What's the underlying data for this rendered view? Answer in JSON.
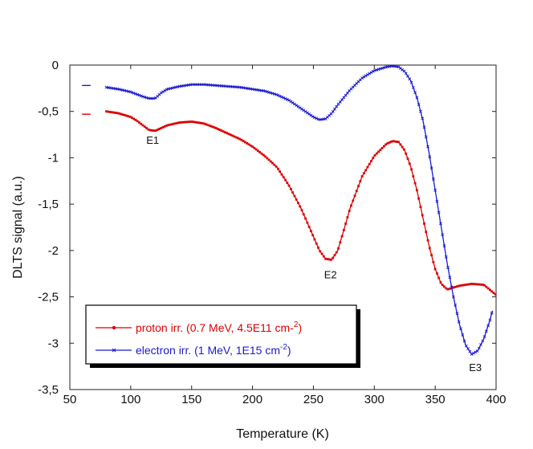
{
  "chart_data": {
    "type": "line",
    "title": "",
    "xlabel": "Temperature (K)",
    "ylabel": "DLTS signal (a.u.)",
    "xlim": [
      50,
      400
    ],
    "ylim": [
      -3.5,
      0
    ],
    "xticks": [
      50,
      100,
      150,
      200,
      250,
      300,
      350,
      400
    ],
    "xtick_labels": [
      "50",
      "100",
      "150",
      "200",
      "250",
      "300",
      "350",
      "400"
    ],
    "yticks": [
      0,
      -0.5,
      -1,
      -1.5,
      -2,
      -2.5,
      -3,
      -3.5
    ],
    "ytick_labels": [
      "0",
      "-0,5",
      "-1",
      "-1,5",
      "-2",
      "-2,5",
      "-3",
      "-3,5"
    ],
    "grid": false,
    "legend_position": "bottom-left",
    "series": [
      {
        "name": "proton irr. (0.7 MeV, 4.5E11 cm-2)",
        "legend_main": "proton irr. (0.7 MeV, 4.5E11 cm-",
        "legend_sup": "2",
        "legend_end": ")",
        "color": "#dd0000",
        "marker": "dot",
        "x": [
          80,
          90,
          100,
          105,
          110,
          115,
          120,
          125,
          130,
          140,
          150,
          160,
          170,
          180,
          190,
          200,
          210,
          220,
          230,
          240,
          250,
          255,
          260,
          265,
          270,
          275,
          280,
          290,
          300,
          310,
          315,
          320,
          325,
          330,
          335,
          340,
          345,
          350,
          355,
          360,
          365,
          370,
          380,
          390,
          400
        ],
        "y": [
          -0.5,
          -0.52,
          -0.56,
          -0.6,
          -0.65,
          -0.7,
          -0.71,
          -0.68,
          -0.65,
          -0.62,
          -0.61,
          -0.63,
          -0.68,
          -0.74,
          -0.8,
          -0.88,
          -0.98,
          -1.1,
          -1.3,
          -1.55,
          -1.85,
          -2.0,
          -2.09,
          -2.1,
          -2.0,
          -1.78,
          -1.55,
          -1.2,
          -0.98,
          -0.85,
          -0.82,
          -0.83,
          -0.92,
          -1.1,
          -1.35,
          -1.65,
          -1.95,
          -2.2,
          -2.36,
          -2.42,
          -2.4,
          -2.38,
          -2.36,
          -2.37,
          -2.48
        ]
      },
      {
        "name": "electron irr. (1 MeV, 1E15 cm-2)",
        "legend_main": "electron irr. (1 MeV, 1E15 cm",
        "legend_sup": "-2",
        "legend_end": ")",
        "color": "#1a1ad0",
        "marker": "x",
        "x": [
          80,
          90,
          100,
          110,
          115,
          120,
          125,
          130,
          140,
          150,
          160,
          170,
          180,
          190,
          200,
          210,
          220,
          230,
          240,
          250,
          255,
          260,
          265,
          270,
          280,
          290,
          300,
          310,
          315,
          320,
          325,
          330,
          335,
          340,
          345,
          350,
          355,
          360,
          365,
          370,
          375,
          380,
          385,
          390,
          395,
          397
        ],
        "y": [
          -0.24,
          -0.26,
          -0.29,
          -0.34,
          -0.36,
          -0.36,
          -0.3,
          -0.26,
          -0.23,
          -0.21,
          -0.21,
          -0.22,
          -0.23,
          -0.24,
          -0.26,
          -0.28,
          -0.32,
          -0.38,
          -0.47,
          -0.56,
          -0.59,
          -0.58,
          -0.52,
          -0.43,
          -0.27,
          -0.14,
          -0.06,
          -0.02,
          -0.01,
          -0.02,
          -0.07,
          -0.17,
          -0.35,
          -0.6,
          -0.95,
          -1.35,
          -1.75,
          -2.15,
          -2.5,
          -2.8,
          -3.02,
          -3.12,
          -3.08,
          -2.95,
          -2.75,
          -2.65
        ]
      }
    ],
    "annotations": [
      {
        "text": "E1",
        "x": 118,
        "y": -0.85
      },
      {
        "text": "E2",
        "x": 264,
        "y": -2.3
      },
      {
        "text": "E3",
        "x": 383,
        "y": -3.3
      }
    ],
    "markers_left": [
      {
        "y": -0.22,
        "color": "#1a1ad0"
      },
      {
        "y": -0.53,
        "color": "#dd0000"
      }
    ]
  }
}
